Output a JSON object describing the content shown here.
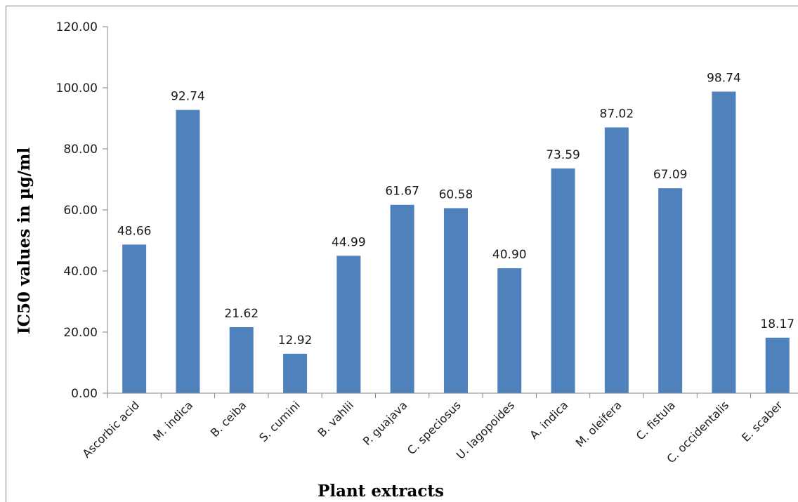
{
  "chart_data": {
    "type": "bar",
    "xlabel": "Plant extracts",
    "ylabel": "IC50 values in µg/ml",
    "ylim": [
      0,
      120
    ],
    "y_ticks": [
      "0.00",
      "20.00",
      "40.00",
      "60.00",
      "80.00",
      "100.00",
      "120.00"
    ],
    "grid": false,
    "legend": "none",
    "bar_color": "#4f81bd",
    "categories": [
      "Ascorbic acid",
      "M. indica",
      "B. ceiba",
      "S. cumini",
      "B. vahlii",
      "P. guajava",
      "C. speciosus",
      "U. lagopoides",
      "A. indica",
      "M. oleifera",
      "C. fistula",
      "C. occidentalis",
      "E. scaber"
    ],
    "values": [
      48.66,
      92.74,
      21.62,
      12.92,
      44.99,
      61.67,
      60.58,
      40.9,
      73.59,
      87.02,
      67.09,
      98.74,
      18.17
    ],
    "data_labels": [
      "48.66",
      "92.74",
      "21.62",
      "12.92",
      "44.99",
      "61.67",
      "60.58",
      "40.90",
      "73.59",
      "87.02",
      "67.09",
      "98.74",
      "18.17"
    ]
  }
}
